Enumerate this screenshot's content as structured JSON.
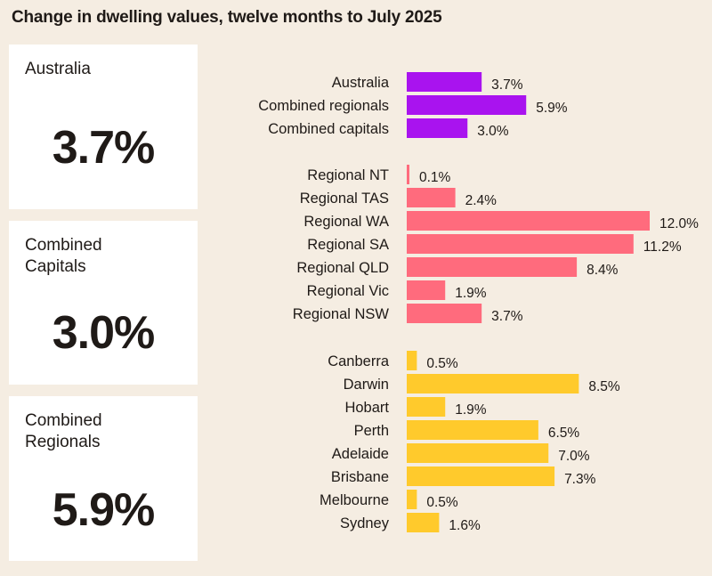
{
  "chart_data": {
    "type": "bar",
    "orientation": "horizontal",
    "title": "Change in dwelling values, twelve months to July 2025",
    "unit": "%",
    "xlim": [
      0,
      12.0
    ],
    "grid": false,
    "groups": [
      {
        "color": "#a913ef",
        "categories": [
          "Australia",
          "Combined regionals",
          "Combined capitals"
        ],
        "values": [
          3.7,
          5.9,
          3.0
        ],
        "labels": [
          "3.7%",
          "5.9%",
          "3.0%"
        ]
      },
      {
        "color": "#ff6b7d",
        "categories": [
          "Regional NT",
          "Regional TAS",
          "Regional WA",
          "Regional SA",
          "Regional QLD",
          "Regional Vic",
          "Regional NSW"
        ],
        "values": [
          0.1,
          2.4,
          12.0,
          11.2,
          8.4,
          1.9,
          3.7
        ],
        "labels": [
          "0.1%",
          "2.4%",
          "12.0%",
          "11.2%",
          "8.4%",
          "1.9%",
          "3.7%"
        ]
      },
      {
        "color": "#ffca2c",
        "categories": [
          "Canberra",
          "Darwin",
          "Hobart",
          "Perth",
          "Adelaide",
          "Brisbane",
          "Melbourne",
          "Sydney"
        ],
        "values": [
          0.5,
          8.5,
          1.9,
          6.5,
          7.0,
          7.3,
          0.5,
          1.6
        ],
        "labels": [
          "0.5%",
          "8.5%",
          "1.9%",
          "6.5%",
          "7.0%",
          "7.3%",
          "0.5%",
          "1.6%"
        ]
      }
    ]
  },
  "cards": [
    {
      "label": "Australia",
      "value": "3.7%"
    },
    {
      "label": "Combined Capitals",
      "value": "3.0%"
    },
    {
      "label": "Combined Regionals",
      "value": "5.9%"
    }
  ]
}
